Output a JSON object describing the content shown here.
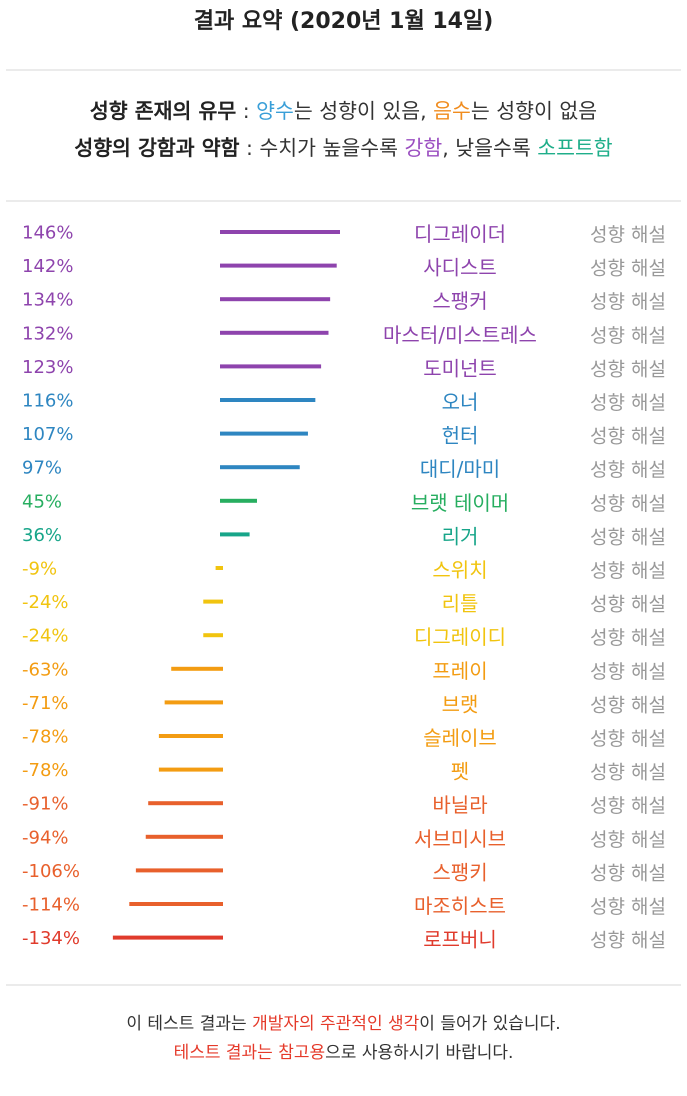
{
  "header": {
    "title": "결과 요약 (2020년 1월 14일)"
  },
  "legend": {
    "line1": {
      "bold": "성향 존재의 유무",
      "sep": " : ",
      "pos_word": "양수",
      "pos_rest": "는 성향이 있음, ",
      "neg_word": "음수",
      "neg_rest": "는 성향이 없음"
    },
    "line2": {
      "bold": "성향의 강함과 약함",
      "sep": " : 수치가 높을수록 ",
      "strong_word": "강함",
      "mid": ", 낮을수록 ",
      "soft_word": "소프트함"
    }
  },
  "colors": {
    "positive": "#3a9fd8",
    "negative": "#f08c1e",
    "strong": "#9b4fc1",
    "soft": "#1fae8a"
  },
  "chart_data": {
    "type": "bar",
    "orientation": "horizontal",
    "link_label": "성향 해설",
    "categories": [
      "디그레이더",
      "사디스트",
      "스팽커",
      "마스터/미스트레스",
      "도미넌트",
      "오너",
      "헌터",
      "대디/마미",
      "브랫 테이머",
      "리거",
      "스위치",
      "리틀",
      "디그레이디",
      "프레이",
      "브랫",
      "슬레이브",
      "펫",
      "바닐라",
      "서브미시브",
      "스팽키",
      "마조히스트",
      "로프버니"
    ],
    "values": [
      146,
      142,
      134,
      132,
      123,
      116,
      107,
      97,
      45,
      36,
      -9,
      -24,
      -24,
      -63,
      -71,
      -78,
      -78,
      -91,
      -94,
      -106,
      -114,
      -134
    ],
    "value_labels": [
      "146%",
      "142%",
      "134%",
      "132%",
      "123%",
      "116%",
      "107%",
      "97%",
      "45%",
      "36%",
      "-9%",
      "-24%",
      "-24%",
      "-63%",
      "-71%",
      "-78%",
      "-78%",
      "-91%",
      "-94%",
      "-106%",
      "-114%",
      "-134%"
    ],
    "colors": [
      "#8e44ad",
      "#8e44ad",
      "#8e44ad",
      "#8e44ad",
      "#8e44ad",
      "#2e86c1",
      "#2e86c1",
      "#2e86c1",
      "#27ae60",
      "#17a589",
      "#f1c40f",
      "#f1c40f",
      "#f1c40f",
      "#f39c12",
      "#f39c12",
      "#f39c12",
      "#f39c12",
      "#e8602c",
      "#e8602c",
      "#e8602c",
      "#e8602c",
      "#e03b2c"
    ]
  },
  "footer": {
    "line1": {
      "a": "이 테스트 결과는 ",
      "b": "개발자의 주관적인 생각",
      "c": "이 들어가 있습니다."
    },
    "line2": {
      "a": "테스트 결과는 참고용",
      "b": "으로 사용하시기 바랍니다."
    }
  }
}
